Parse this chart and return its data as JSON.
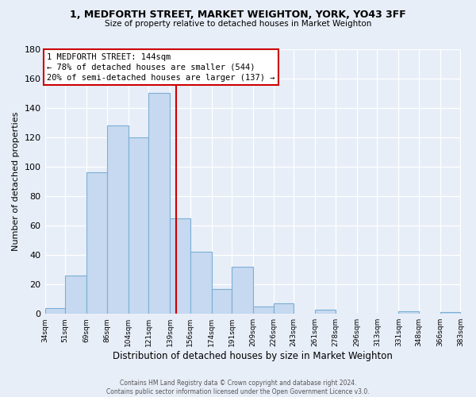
{
  "title1": "1, MEDFORTH STREET, MARKET WEIGHTON, YORK, YO43 3FF",
  "title2": "Size of property relative to detached houses in Market Weighton",
  "xlabel": "Distribution of detached houses by size in Market Weighton",
  "ylabel": "Number of detached properties",
  "bar_color": "#c6d9f0",
  "bar_edge_color": "#7bafd4",
  "vline_x": 144,
  "vline_color": "#cc0000",
  "annotation_line1": "1 MEDFORTH STREET: 144sqm",
  "annotation_line2": "← 78% of detached houses are smaller (544)",
  "annotation_line3": "20% of semi-detached houses are larger (137) →",
  "bin_edges": [
    34,
    51,
    69,
    86,
    104,
    121,
    139,
    156,
    174,
    191,
    209,
    226,
    243,
    261,
    278,
    296,
    313,
    331,
    348,
    366,
    383
  ],
  "bin_heights": [
    4,
    26,
    96,
    128,
    120,
    150,
    65,
    42,
    17,
    32,
    5,
    7,
    0,
    3,
    0,
    0,
    0,
    2,
    0,
    1
  ],
  "ylim": [
    0,
    180
  ],
  "yticks": [
    0,
    20,
    40,
    60,
    80,
    100,
    120,
    140,
    160,
    180
  ],
  "xtick_labels": [
    "34sqm",
    "51sqm",
    "69sqm",
    "86sqm",
    "104sqm",
    "121sqm",
    "139sqm",
    "156sqm",
    "174sqm",
    "191sqm",
    "209sqm",
    "226sqm",
    "243sqm",
    "261sqm",
    "278sqm",
    "296sqm",
    "313sqm",
    "331sqm",
    "348sqm",
    "366sqm",
    "383sqm"
  ],
  "footer1": "Contains HM Land Registry data © Crown copyright and database right 2024.",
  "footer2": "Contains public sector information licensed under the Open Government Licence v3.0.",
  "bg_color": "#e8eef8"
}
